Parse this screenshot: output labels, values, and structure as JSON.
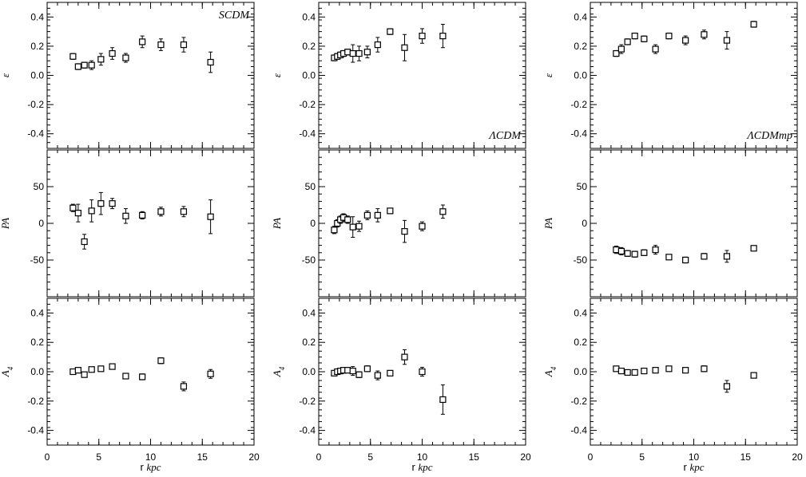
{
  "chart_data": {
    "type": "scatter",
    "style": {
      "frame_color": "#000000",
      "marker_fill": "#ffffff",
      "marker_edge": "#000000",
      "marker": "square",
      "error_bars": true,
      "grid": false
    },
    "x_axis": {
      "label_prefix": "r",
      "label_unit": "kpc",
      "range": [
        0,
        20
      ],
      "ticks": [
        0,
        5,
        10,
        15,
        20
      ],
      "tick_labels": [
        "0",
        "5",
        "10",
        "15",
        "20"
      ]
    },
    "rows": [
      {
        "ylabel": "ε",
        "range": [
          -0.5,
          0.5
        ],
        "ticks": [
          -0.4,
          -0.2,
          0.0,
          0.2,
          0.4
        ],
        "tick_labels": [
          "-0.4",
          "-0.2",
          "0.0",
          "0.2",
          "0.4"
        ]
      },
      {
        "ylabel": "PA",
        "range": [
          -100,
          100
        ],
        "ticks": [
          -50,
          0,
          50
        ],
        "tick_labels": [
          "-50",
          "0",
          "50"
        ]
      },
      {
        "ylabel": "A4",
        "range": [
          -0.5,
          0.5
        ],
        "ticks": [
          -0.4,
          -0.2,
          0.0,
          0.2,
          0.4
        ],
        "tick_labels": [
          "-0.4",
          "-0.2",
          "0.0",
          "0.2",
          "0.4"
        ]
      }
    ],
    "columns": [
      {
        "model": "SCDM",
        "label_corner": "top-right",
        "x": [
          2.5,
          3.0,
          3.6,
          4.3,
          5.2,
          6.3,
          7.6,
          9.2,
          11.0,
          13.2,
          15.8
        ],
        "panels": [
          {
            "y": [
              0.13,
              0.06,
              0.07,
              0.07,
              0.11,
              0.15,
              0.12,
              0.23,
              0.21,
              0.21,
              0.09
            ],
            "err": [
              0.02,
              0.02,
              0.02,
              0.03,
              0.04,
              0.04,
              0.03,
              0.04,
              0.04,
              0.05,
              0.07
            ]
          },
          {
            "y": [
              21,
              14,
              -25,
              17,
              27,
              27,
              10,
              11,
              16,
              16,
              9
            ],
            "err": [
              5,
              12,
              10,
              15,
              15,
              7,
              10,
              5,
              6,
              7,
              23
            ]
          },
          {
            "y": [
              0.0,
              0.01,
              -0.02,
              0.015,
              0.02,
              0.035,
              -0.03,
              -0.035,
              0.075,
              -0.1,
              -0.015
            ],
            "err": [
              0.01,
              0.01,
              0.01,
              0.01,
              0.01,
              0.01,
              0.01,
              0.02,
              0.02,
              0.03,
              0.03
            ]
          }
        ]
      },
      {
        "model": "ΛCDM",
        "label_corner": "bottom-right",
        "x": [
          1.5,
          1.8,
          2.1,
          2.4,
          2.8,
          3.3,
          3.9,
          4.7,
          5.7,
          6.9,
          8.3,
          10.0,
          12.0
        ],
        "panels": [
          {
            "y": [
              0.12,
              0.13,
              0.14,
              0.15,
              0.16,
              0.15,
              0.15,
              0.16,
              0.21,
              0.3,
              0.19,
              0.27,
              0.27
            ],
            "err": [
              0.02,
              0.02,
              0.02,
              0.02,
              0.02,
              0.06,
              0.05,
              0.04,
              0.05,
              0.02,
              0.09,
              0.05,
              0.08
            ]
          },
          {
            "y": [
              -9,
              0,
              5,
              8,
              5,
              -5,
              -4,
              11,
              11,
              17,
              -11,
              -4,
              16
            ],
            "err": [
              5,
              5,
              5,
              5,
              5,
              14,
              7,
              6,
              9,
              3,
              15,
              6,
              9
            ]
          },
          {
            "y": [
              -0.01,
              0.0,
              0.005,
              0.01,
              0.01,
              0.005,
              -0.02,
              0.02,
              -0.025,
              -0.01,
              0.1,
              0.0,
              -0.19
            ],
            "err": [
              0.01,
              0.01,
              0.01,
              0.01,
              0.01,
              0.03,
              0.02,
              0.02,
              0.03,
              0.01,
              0.05,
              0.03,
              0.1
            ]
          }
        ]
      },
      {
        "model": "ΛCDMmp",
        "label_corner": "bottom-right",
        "x": [
          2.5,
          3.0,
          3.6,
          4.3,
          5.2,
          6.3,
          7.6,
          9.2,
          11.0,
          13.2,
          15.8
        ],
        "panels": [
          {
            "y": [
              0.15,
              0.18,
              0.23,
              0.27,
              0.25,
              0.18,
              0.27,
              0.24,
              0.28,
              0.24,
              0.35
            ],
            "err": [
              0.02,
              0.03,
              0.02,
              0.02,
              0.02,
              0.03,
              0.02,
              0.03,
              0.03,
              0.06,
              0.02
            ]
          },
          {
            "y": [
              -36,
              -38,
              -41,
              -42,
              -40,
              -36,
              -46,
              -50,
              -45,
              -45,
              -34
            ],
            "err": [
              5,
              5,
              4,
              4,
              4,
              6,
              3,
              4,
              4,
              8,
              2
            ]
          },
          {
            "y": [
              0.02,
              0.005,
              -0.005,
              -0.005,
              0.005,
              0.01,
              0.02,
              0.01,
              0.02,
              -0.1,
              -0.025
            ],
            "err": [
              0.01,
              0.01,
              0.01,
              0.01,
              0.01,
              0.01,
              0.01,
              0.01,
              0.02,
              0.04,
              0.01
            ]
          }
        ]
      }
    ]
  }
}
